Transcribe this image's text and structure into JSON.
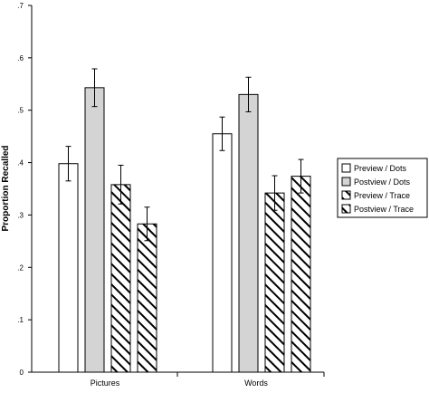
{
  "chart_data": {
    "type": "bar",
    "title": "",
    "xlabel": "",
    "ylabel": "Proportion Recalled",
    "ylim": [
      0,
      0.7
    ],
    "yticks": [
      {
        "value": 0,
        "label": "0"
      },
      {
        "value": 0.1,
        "label": ".1"
      },
      {
        "value": 0.2,
        "label": ".2"
      },
      {
        "value": 0.3,
        "label": ".3"
      },
      {
        "value": 0.4,
        "label": ".4"
      },
      {
        "value": 0.5,
        "label": ".5"
      },
      {
        "value": 0.6,
        "label": ".6"
      },
      {
        "value": 0.7,
        "label": ".7"
      }
    ],
    "categories": [
      "Pictures",
      "Words"
    ],
    "grid": false,
    "legend_position": "right",
    "series": [
      {
        "name": "Preview / Dots",
        "values": [
          0.398,
          0.455
        ],
        "errors": [
          0.033,
          0.032
        ],
        "fill": "white"
      },
      {
        "name": "Postview / Dots",
        "values": [
          0.543,
          0.53
        ],
        "errors": [
          0.036,
          0.033
        ],
        "fill": "lightgray"
      },
      {
        "name": "Preview / Trace",
        "values": [
          0.358,
          0.342
        ],
        "errors": [
          0.037,
          0.033
        ],
        "fill": "hatch"
      },
      {
        "name": "Postview / Trace",
        "values": [
          0.283,
          0.374
        ],
        "errors": [
          0.032,
          0.032
        ],
        "fill": "hatch"
      }
    ],
    "colors": {
      "stroke": "#000000",
      "light_fill": "#d4d4d4",
      "white_fill": "#ffffff"
    }
  }
}
